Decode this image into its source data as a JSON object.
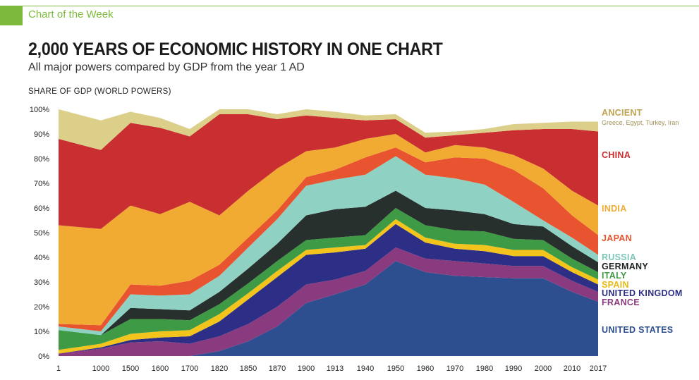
{
  "header": {
    "section_label": "Chart of the Week",
    "accent_color": "#7dba3c"
  },
  "chart_data": {
    "type": "area",
    "stacked": true,
    "normalized_percent": true,
    "title": "2,000 YEARS OF ECONOMIC HISTORY IN ONE CHART",
    "subtitle": "All major powers compared by GDP from the year 1 AD",
    "ylabel": "SHARE OF GDP (WORLD POWERS)",
    "xlabel": "",
    "ylim": [
      0,
      100
    ],
    "yticks": [
      "0%",
      "10%",
      "20%",
      "30%",
      "40%",
      "50%",
      "60%",
      "70%",
      "80%",
      "90%",
      "100%"
    ],
    "x": [
      "1",
      "1000",
      "1500",
      "1600",
      "1700",
      "1820",
      "1850",
      "1870",
      "1900",
      "1913",
      "1940",
      "1950",
      "1960",
      "1970",
      "1980",
      "1990",
      "2000",
      "2010",
      "2017"
    ],
    "series": [
      {
        "name": "UNITED STATES",
        "color": "#2e4f8f",
        "values": [
          0,
          0,
          0,
          0,
          0,
          2,
          6,
          12,
          21.5,
          25,
          29,
          38.5,
          34,
          32.5,
          32,
          31.5,
          31.5,
          26,
          22
        ]
      },
      {
        "name": "FRANCE",
        "color": "#8a3a7e",
        "values": [
          1,
          3,
          5.5,
          6,
          5,
          6,
          7,
          8,
          7.5,
          6,
          5.5,
          5.5,
          5.5,
          6,
          5.5,
          5,
          5,
          4.5,
          4
        ]
      },
      {
        "name": "UNITED KINGDOM",
        "color": "#2d2f86",
        "values": [
          0,
          0.5,
          1,
          1.5,
          3,
          6,
          10,
          12,
          12,
          11,
          9,
          9.5,
          6.5,
          5,
          5,
          4,
          4,
          3.5,
          3
        ]
      },
      {
        "name": "SPAIN",
        "color": "#f2c41c",
        "values": [
          1.5,
          1.5,
          2.5,
          2.5,
          2.5,
          3,
          2.5,
          2.5,
          2,
          2,
          1.5,
          2,
          2,
          2,
          2.5,
          2.5,
          2.5,
          2,
          2
        ]
      },
      {
        "name": "ITALY",
        "color": "#3f9a45",
        "values": [
          8,
          3.5,
          6,
          5,
          4,
          4,
          4,
          4,
          4,
          4,
          4,
          4.5,
          5,
          5.5,
          5.5,
          4.5,
          4,
          3.5,
          3
        ]
      },
      {
        "name": "GERMANY",
        "color": "#27302d",
        "values": [
          0,
          0,
          4.5,
          4,
          4,
          5,
          6,
          7,
          10,
          11.5,
          11.5,
          7,
          7,
          8,
          7,
          6,
          5.5,
          5,
          4
        ]
      },
      {
        "name": "RUSSIA",
        "color": "#8fd1c3",
        "values": [
          1.5,
          1.5,
          5.5,
          5.5,
          6.5,
          6.5,
          8.5,
          10,
          12,
          12,
          13,
          14,
          13.5,
          13,
          12,
          9,
          2.5,
          3.5,
          3
        ]
      },
      {
        "name": "JAPAN",
        "color": "#e8542f",
        "values": [
          1,
          2.5,
          4,
          4,
          5.5,
          4.5,
          4,
          3.5,
          3.5,
          4,
          7,
          3.5,
          5,
          8.5,
          10.5,
          13,
          13,
          9,
          8
        ]
      },
      {
        "name": "INDIA",
        "color": "#f1ab33",
        "values": [
          40,
          39,
          32,
          29,
          32,
          20,
          19,
          17,
          10.5,
          9,
          7.5,
          5.5,
          4,
          5,
          4.5,
          6,
          8,
          10,
          12
        ]
      },
      {
        "name": "CHINA",
        "color": "#c92f30",
        "values": [
          35,
          32,
          33.5,
          35,
          26.5,
          41,
          31,
          20,
          14.5,
          12,
          7.5,
          6,
          6,
          4,
          6,
          10,
          16,
          25,
          30
        ]
      },
      {
        "name": "ANCIENT",
        "sublabel": "Greece, Egypt, Turkey, Iran",
        "color": "#dccf8a",
        "values": [
          12,
          12,
          4.5,
          4,
          3,
          2,
          2,
          2,
          2.5,
          2.5,
          2,
          2,
          2,
          1.5,
          1.5,
          2.5,
          2.5,
          3,
          4
        ]
      }
    ],
    "legend_position": "right",
    "legend_text_colors": {
      "ANCIENT": "#bfa352",
      "CHINA": "#c92f30",
      "INDIA": "#f1ab33",
      "JAPAN": "#e8542f",
      "RUSSIA": "#7cc7b8",
      "GERMANY": "#1e2422",
      "ITALY": "#3f9a45",
      "SPAIN": "#e8b818",
      "UNITED KINGDOM": "#2d2f86",
      "FRANCE": "#8a3a7e",
      "UNITED STATES": "#2e4f8f"
    }
  }
}
